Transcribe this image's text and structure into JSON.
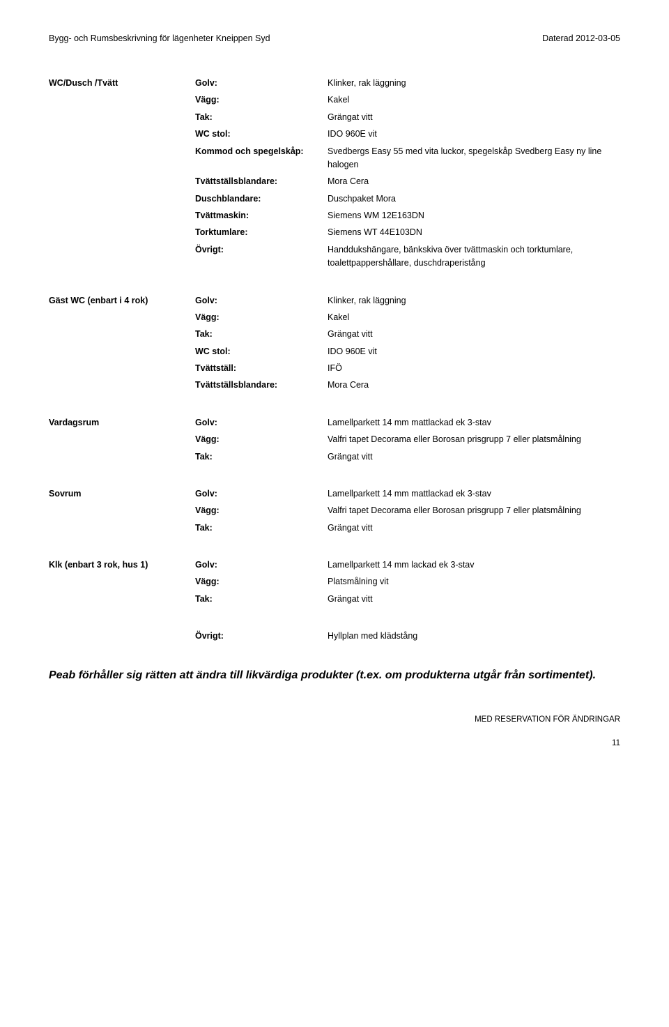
{
  "header": {
    "left": "Bygg- och Rumsbeskrivning för lägenheter Kneippen Syd",
    "right": "Daterad 2012-03-05"
  },
  "sections": [
    {
      "title": "WC/Dusch /Tvätt",
      "rows": [
        {
          "label": "Golv:",
          "value": "Klinker, rak läggning"
        },
        {
          "label": "Vägg:",
          "value": "Kakel"
        },
        {
          "label": "Tak:",
          "value": "Grängat vitt"
        },
        {
          "label": "WC stol:",
          "value": "IDO 960E vit"
        },
        {
          "label": "Kommod och spegelskåp:",
          "value": "Svedbergs Easy 55 med vita luckor, spegelskåp Svedberg Easy ny line halogen"
        },
        {
          "label": "Tvättställsblandare:",
          "value": "Mora Cera"
        },
        {
          "label": "Duschblandare:",
          "value": "Duschpaket Mora"
        },
        {
          "label": "Tvättmaskin:",
          "value": "Siemens WM 12E163DN"
        },
        {
          "label": "Torktumlare:",
          "value": "Siemens WT 44E103DN"
        },
        {
          "label": "Övrigt:",
          "value": "Handdukshängare, bänkskiva över tvättmaskin och torktumlare, toalettpappershållare, duschdraperistång"
        }
      ]
    },
    {
      "title": "Gäst WC (enbart i 4 rok)",
      "rows": [
        {
          "label": "Golv:",
          "value": "Klinker, rak läggning"
        },
        {
          "label": "Vägg:",
          "value": "Kakel"
        },
        {
          "label": "Tak:",
          "value": "Grängat vitt"
        },
        {
          "label": "WC stol:",
          "value": "IDO 960E vit"
        },
        {
          "label": "Tvättställ:",
          "value": "IFÖ"
        },
        {
          "label": "Tvättställsblandare:",
          "value": "Mora Cera"
        }
      ]
    },
    {
      "title": "Vardagsrum",
      "rows": [
        {
          "label": "Golv:",
          "value": "Lamellparkett 14 mm mattlackad ek 3-stav"
        },
        {
          "label": "Vägg:",
          "value": "Valfri tapet Decorama eller Borosan prisgrupp 7 eller platsmålning"
        },
        {
          "label": "Tak:",
          "value": "Grängat vitt"
        }
      ]
    },
    {
      "title": "Sovrum",
      "rows": [
        {
          "label": "Golv:",
          "value": "Lamellparkett 14 mm mattlackad ek 3-stav"
        },
        {
          "label": "Vägg:",
          "value": "Valfri tapet Decorama eller Borosan prisgrupp 7 eller platsmålning"
        },
        {
          "label": "Tak:",
          "value": "Grängat vitt"
        }
      ]
    },
    {
      "title": "Klk (enbart 3 rok, hus 1)",
      "rows": [
        {
          "label": "Golv:",
          "value": "Lamellparkett 14 mm lackad ek 3-stav"
        },
        {
          "label": "Vägg:",
          "value": "Platsmålning vit"
        },
        {
          "label": "Tak:",
          "value": "Grängat vitt"
        }
      ]
    },
    {
      "title": "",
      "rows": [
        {
          "label": "Övrigt:",
          "value": "Hyllplan med klädstång"
        }
      ]
    }
  ],
  "disclaimer": "Peab förhåller sig rätten att ändra till likvärdiga produkter (t.ex. om produkterna utgår från sortimentet).",
  "footer": {
    "reservation": "MED RESERVATION FÖR ÄNDRINGAR",
    "page": "11"
  }
}
